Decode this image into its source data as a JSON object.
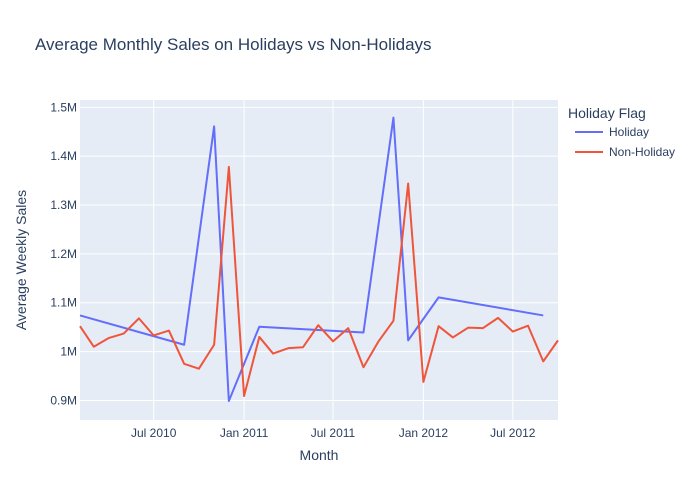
{
  "chart_data": {
    "type": "line",
    "title": "Average Monthly Sales on Holidays vs Non-Holidays",
    "xlabel": "Month",
    "ylabel": "Average Weekly Sales",
    "legend_title": "Holiday Flag",
    "legend_position": "top-right, outside plot",
    "grid": true,
    "plot_background": "#e5ecf6",
    "x_range": [
      "2010-02-01",
      "2012-10-01"
    ],
    "y_range": [
      860000,
      1515000
    ],
    "x_ticks": [
      {
        "value": "2010-07-01",
        "label": "Jul 2010"
      },
      {
        "value": "2011-01-01",
        "label": "Jan 2011"
      },
      {
        "value": "2011-07-01",
        "label": "Jul 2011"
      },
      {
        "value": "2012-01-01",
        "label": "Jan 2012"
      },
      {
        "value": "2012-07-01",
        "label": "Jul 2012"
      }
    ],
    "y_ticks": [
      {
        "value": 900000,
        "label": "0.9M"
      },
      {
        "value": 1000000,
        "label": "1M"
      },
      {
        "value": 1100000,
        "label": "1.1M"
      },
      {
        "value": 1200000,
        "label": "1.2M"
      },
      {
        "value": 1300000,
        "label": "1.3M"
      },
      {
        "value": 1400000,
        "label": "1.4M"
      },
      {
        "value": 1500000,
        "label": "1.5M"
      }
    ],
    "series": [
      {
        "name": "Holiday",
        "color": "#636efa",
        "x": [
          "2010-02-01",
          "2010-09-01",
          "2010-11-01",
          "2010-12-01",
          "2011-02-01",
          "2011-09-01",
          "2011-11-01",
          "2011-12-01",
          "2012-02-01",
          "2012-09-01"
        ],
        "y": [
          1074000,
          1014000,
          1461000,
          899000,
          1051000,
          1039000,
          1479000,
          1023000,
          1111000,
          1074000
        ]
      },
      {
        "name": "Non-Holiday",
        "color": "#ef553b",
        "x": [
          "2010-02-01",
          "2010-03-01",
          "2010-04-01",
          "2010-05-01",
          "2010-06-01",
          "2010-07-01",
          "2010-08-01",
          "2010-09-01",
          "2010-10-01",
          "2010-11-01",
          "2010-12-01",
          "2011-01-01",
          "2011-02-01",
          "2011-03-01",
          "2011-04-01",
          "2011-05-01",
          "2011-06-01",
          "2011-07-01",
          "2011-08-01",
          "2011-09-01",
          "2011-10-01",
          "2011-11-01",
          "2011-12-01",
          "2012-01-01",
          "2012-02-01",
          "2012-03-01",
          "2012-04-01",
          "2012-05-01",
          "2012-06-01",
          "2012-07-01",
          "2012-08-01",
          "2012-09-01",
          "2012-10-01"
        ],
        "y": [
          1052000,
          1010000,
          1028000,
          1037000,
          1068000,
          1033000,
          1043000,
          975000,
          965000,
          1014000,
          1378000,
          909000,
          1030000,
          996000,
          1007000,
          1009000,
          1054000,
          1021000,
          1048000,
          968000,
          1020000,
          1063000,
          1344000,
          938000,
          1052000,
          1029000,
          1049000,
          1048000,
          1069000,
          1041000,
          1053000,
          980000,
          1023000
        ]
      }
    ]
  }
}
